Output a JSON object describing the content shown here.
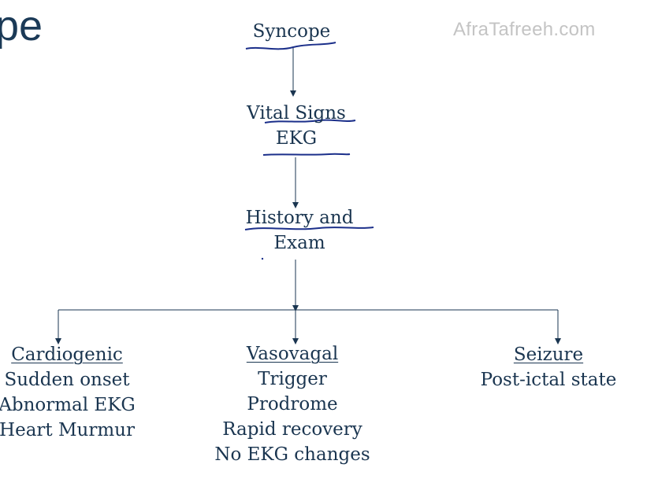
{
  "slide": {
    "title_fragment": "pe",
    "watermark": "AfraTafreeh.com"
  },
  "flow": {
    "start": "Syncope",
    "step1": [
      "Vital Signs",
      "EKG"
    ],
    "step2": [
      "History and",
      "Exam"
    ]
  },
  "branches": [
    {
      "heading": "Cardiogenic",
      "items": [
        "Sudden onset",
        "Abnormal EKG",
        "Heart Murmur"
      ]
    },
    {
      "heading": "Vasovagal",
      "items": [
        "Trigger",
        "Prodrome",
        "Rapid recovery",
        "No EKG changes"
      ]
    },
    {
      "heading": "Seizure",
      "items": [
        "Post-ictal state"
      ]
    }
  ],
  "colors": {
    "text": "#1a3550",
    "annotation_ink": "#1b2f8a",
    "watermark": "#c4c4c4"
  }
}
